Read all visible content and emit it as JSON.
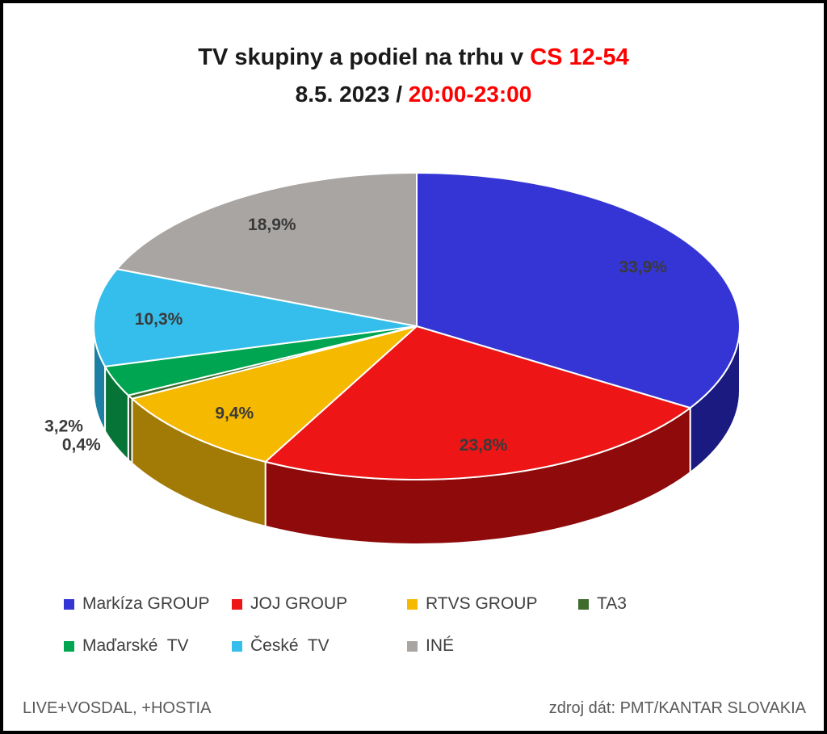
{
  "title": {
    "line1_black": "TV skupiny a podiel na trhu v ",
    "line1_red": "CS 12-54",
    "line2_black": "8.5. 2023 / ",
    "line2_red": "20:00-23:00"
  },
  "chart_data": {
    "type": "pie",
    "style": "3d-pie",
    "title": "TV skupiny a podiel na trhu v CS 12-54",
    "subtitle": "8.5. 2023 / 20:00-23:00",
    "unit": "%",
    "legend_position": "bottom",
    "start_angle_deg": 0,
    "direction": "clockwise",
    "series": [
      {
        "name": "Markíza GROUP",
        "value": 33.9,
        "label": "33,9%",
        "color": "#3535d6",
        "side_color": "#1a1a80"
      },
      {
        "name": "JOJ GROUP",
        "value": 23.8,
        "label": "23,8%",
        "color": "#ed1515",
        "side_color": "#8f0a0a"
      },
      {
        "name": "RTVS GROUP",
        "value": 9.4,
        "label": "9,4%",
        "color": "#f5b900",
        "side_color": "#a27a06"
      },
      {
        "name": "TA3",
        "value": 0.4,
        "label": "0,4%",
        "color": "#3f6b2c",
        "side_color": "#2b4a1e"
      },
      {
        "name": "Maďarské  TV",
        "value": 3.2,
        "label": "3,2%",
        "color": "#00a551",
        "side_color": "#067436"
      },
      {
        "name": "České  TV",
        "value": 10.3,
        "label": "10,3%",
        "color": "#35bdeb",
        "side_color": "#1d7fa3"
      },
      {
        "name": "INÉ",
        "value": 18.9,
        "label": "18,9%",
        "color": "#a8a5a3",
        "side_color": "#6e6b69"
      }
    ]
  },
  "footer": {
    "left": "LIVE+VOSDAL,  +HOSTIA",
    "right": "zdroj dát: PMT/KANTAR SLOVAKIA"
  }
}
